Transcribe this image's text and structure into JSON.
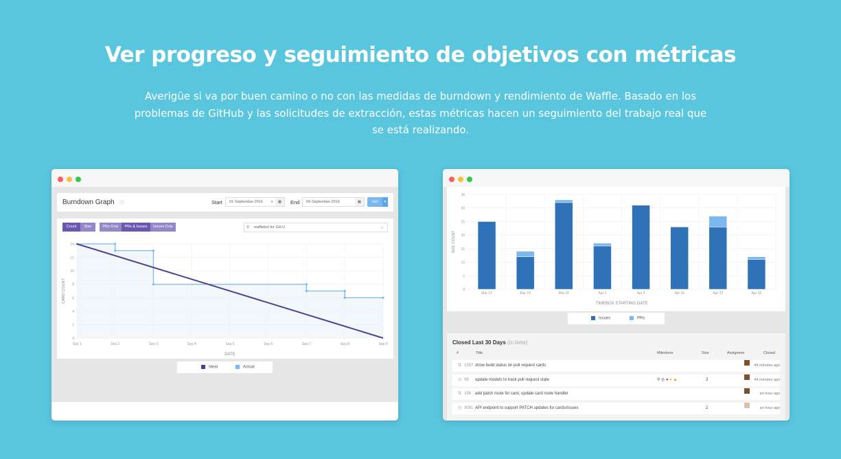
{
  "hero": {
    "title": "Ver progreso y seguimiento de objetivos con métricas",
    "subtitle": "Averigüe si va por buen camino o no con las medidas de burndown y rendimiento de Waffle. Basado en los problemas de GitHub y las solicitudes de extracción, estas métricas hacen un seguimiento del trabajo real que se está realizando."
  },
  "window_dots": [
    "#fc605c",
    "#fdbc40",
    "#34c84a"
  ],
  "burndown": {
    "title": "Burndown Graph",
    "start_label": "Start",
    "start_value": "01-September-2016",
    "end_label": "End",
    "end_value": "09-September-2016",
    "go_label": "Go!",
    "metric_toggle": [
      {
        "label": "Count",
        "active": true
      },
      {
        "label": "Size",
        "active": false
      }
    ],
    "type_toggle": [
      {
        "label": "PRs Only",
        "active": false
      },
      {
        "label": "PRs & Issues",
        "active": true
      },
      {
        "label": "Issues Only",
        "active": false
      }
    ],
    "repo_select": "wafflebot for GH:U",
    "legend": [
      {
        "label": "Ideal",
        "color": "#4f3f8f"
      },
      {
        "label": "Actual",
        "color": "#7ab8ef"
      }
    ]
  },
  "chart_data": [
    {
      "type": "line",
      "xlabel": "DATE",
      "ylabel": "CARD COUNT",
      "ylim": [
        0,
        14
      ],
      "yticks": [
        0,
        2,
        4,
        6,
        8,
        10,
        12,
        14
      ],
      "categories": [
        "Sep 1",
        "Sep 2",
        "Sep 3",
        "Sep 4",
        "Sep 5",
        "Sep 6",
        "Sep 7",
        "Sep 8",
        "Sep 9"
      ],
      "grid": true,
      "legend_position": "bottom",
      "series": [
        {
          "name": "Ideal",
          "color": "#4f3f8f",
          "points": [
            [
              0,
              14
            ],
            [
              8,
              0
            ]
          ]
        },
        {
          "name": "Actual",
          "color": "#7ab8ef",
          "step": true,
          "points": [
            [
              0,
              14
            ],
            [
              1,
              14
            ],
            [
              1,
              13
            ],
            [
              2,
              13
            ],
            [
              2,
              8
            ],
            [
              6,
              8
            ],
            [
              6,
              7
            ],
            [
              7,
              7
            ],
            [
              7,
              6
            ],
            [
              8,
              6
            ]
          ]
        }
      ]
    },
    {
      "type": "bar",
      "stacked": true,
      "xlabel": "TIMEBOX STARTING DATE",
      "ylabel": "SIZE COUNT",
      "ylim": [
        0,
        35
      ],
      "yticks": [
        0,
        5,
        10,
        15,
        20,
        25,
        30,
        35
      ],
      "categories": [
        "Mar 12",
        "Mar 19",
        "Mar 26",
        "Apr 2",
        "Apr 9",
        "Apr 16",
        "Apr 23",
        "Apr 30"
      ],
      "grid": true,
      "legend_position": "bottom",
      "series": [
        {
          "name": "Issues",
          "color": "#2f72b8",
          "values": [
            25,
            12,
            32,
            16,
            31,
            23,
            23,
            11
          ]
        },
        {
          "name": "PRs",
          "color": "#7ab8ef",
          "values": [
            0,
            2,
            1,
            1,
            0,
            0,
            4,
            1
          ]
        }
      ]
    }
  ],
  "closed": {
    "title": "Closed Last 30 Days",
    "beta": "(in beta)",
    "headers": [
      "#",
      "Title",
      "Milestone",
      "Size",
      "Assignees",
      "Closed"
    ],
    "rows": [
      {
        "icon": "pull-request-icon",
        "num": "1597",
        "title": "show build status on pull request cards",
        "size": "",
        "closed": "44 minutes ago",
        "assignees": 1,
        "milestone": false
      },
      {
        "icon": "issue-closed-icon",
        "num": "58",
        "title": "update models to track pull request state",
        "size": "2",
        "closed": "44 minutes ago",
        "assignees": 1,
        "milestone": true
      },
      {
        "icon": "pull-request-icon",
        "num": "198",
        "title": "add patch route for card, update card route handler",
        "size": "",
        "closed": "an hour ago",
        "assignees": 1,
        "milestone": false
      },
      {
        "icon": "issue-closed-icon",
        "num": "3081",
        "title": "API endpoint to support PATCH updates for cards/issues",
        "size": "2",
        "closed": "an hour ago",
        "assignees": 2,
        "milestone": false
      }
    ]
  }
}
